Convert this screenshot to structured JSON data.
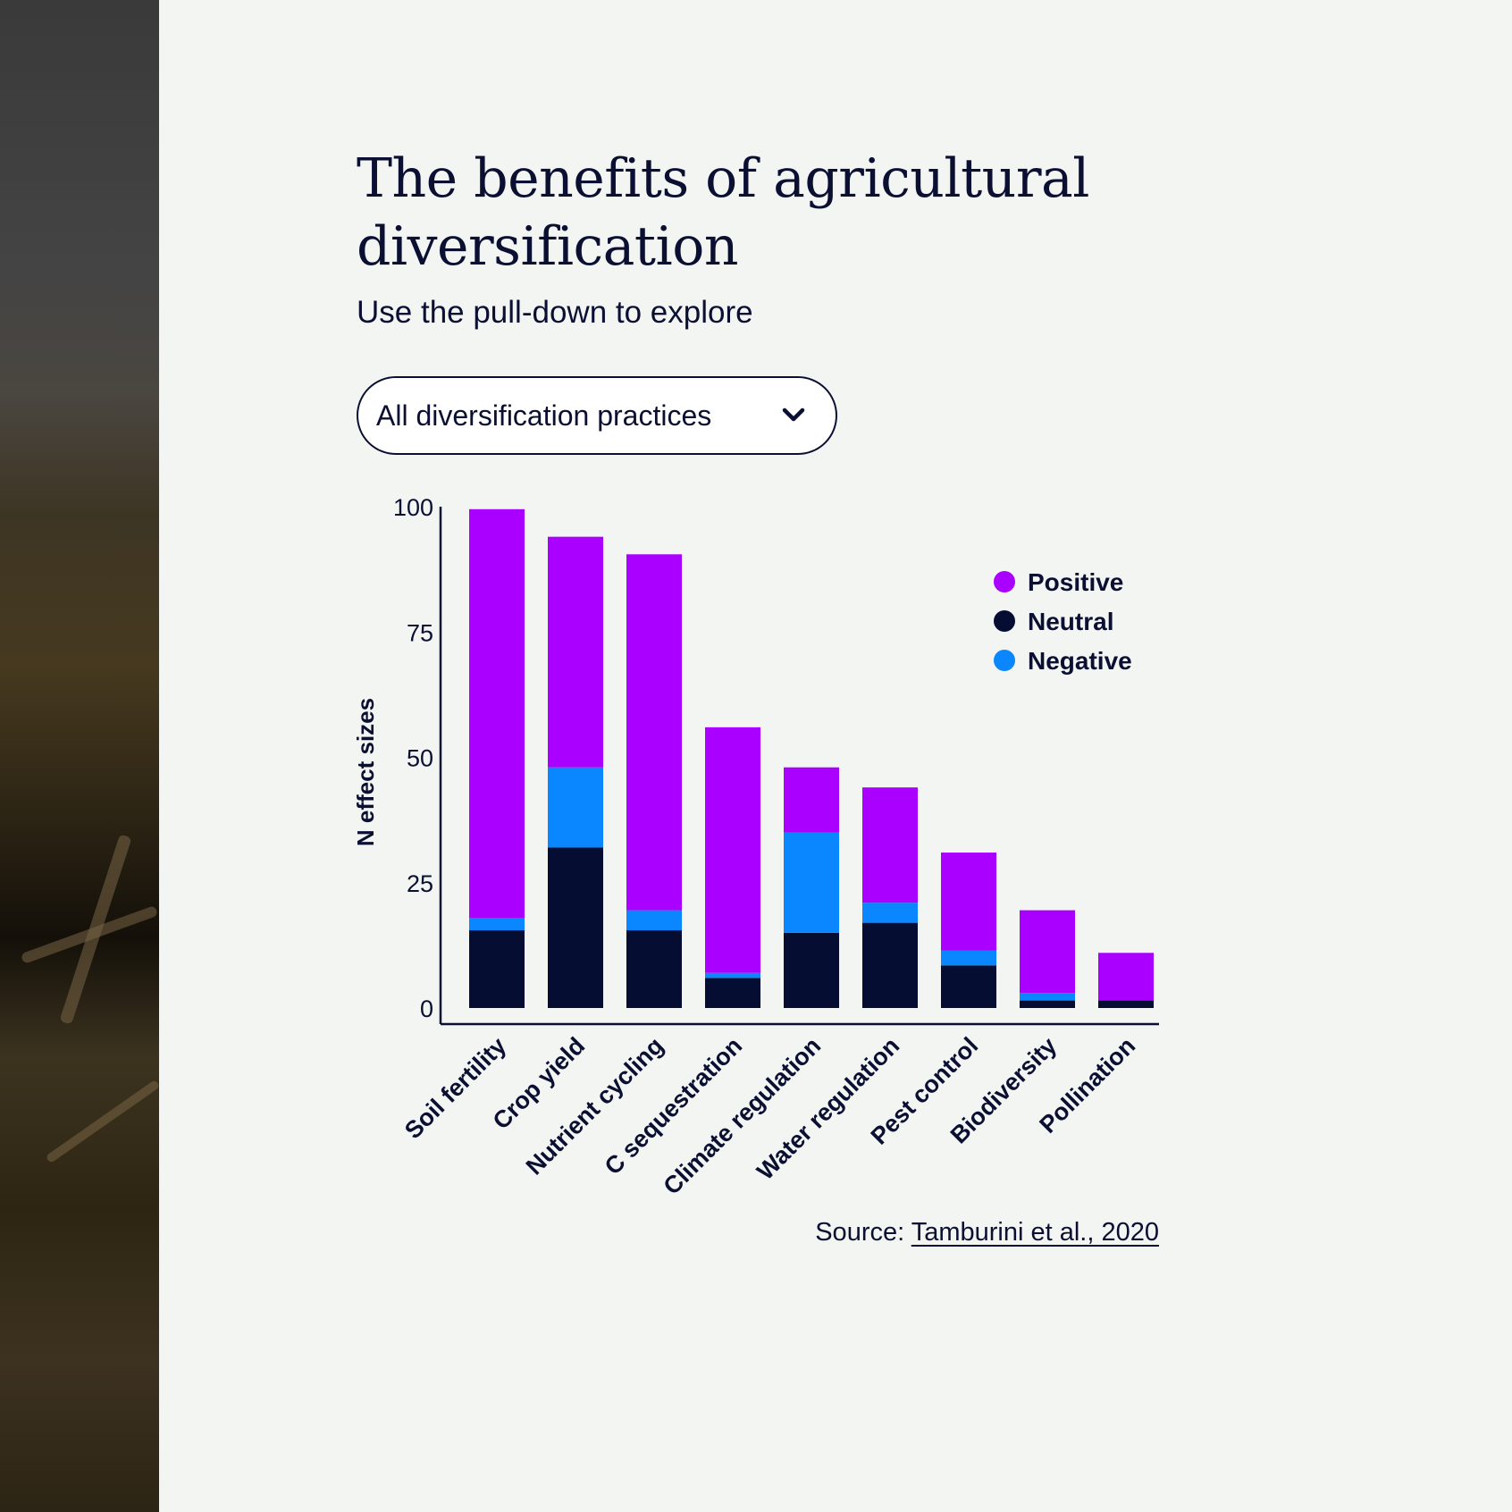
{
  "title": "The benefits of agricultural diversification",
  "subtitle": "Use the pull-down to explore",
  "dropdown": {
    "selected": "All diversification practices",
    "icon": "chevron-down-icon"
  },
  "source": {
    "prefix": "Source:",
    "link_text": "Tamburini et al., 2020"
  },
  "colors": {
    "positive": "#aa00ff",
    "neutral": "#050d33",
    "negative": "#0a86ff",
    "text": "#0b1033"
  },
  "chart_data": {
    "type": "bar",
    "stacked": true,
    "title": "",
    "xlabel": "",
    "ylabel": "N effect sizes",
    "ylim": [
      0,
      100
    ],
    "yticks": [
      0,
      25,
      50,
      75,
      100
    ],
    "categories": [
      "Soil fertility",
      "Crop yield",
      "Nutrient cycling",
      "C sequestration",
      "Climate regulation",
      "Water regulation",
      "Pest control",
      "Biodiversity",
      "Pollination"
    ],
    "series": [
      {
        "name": "Neutral",
        "color": "#050d33",
        "values": [
          15.5,
          32,
          15.5,
          6,
          15,
          17,
          8.5,
          1.5,
          1.5
        ]
      },
      {
        "name": "Negative",
        "color": "#0a86ff",
        "values": [
          2.5,
          16,
          4,
          1,
          20,
          4,
          3,
          1.5,
          0
        ]
      },
      {
        "name": "Positive",
        "color": "#aa00ff",
        "values": [
          81.5,
          46,
          71,
          49,
          13,
          23,
          19.5,
          16.5,
          9.5
        ]
      }
    ],
    "legend": {
      "position": "top-right",
      "entries": [
        "Positive",
        "Neutral",
        "Negative"
      ]
    }
  }
}
